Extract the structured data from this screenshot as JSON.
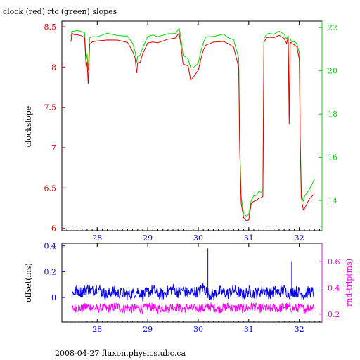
{
  "page": {
    "title": "clock (red) rtc (green) slopes",
    "footer": "2008-04-27 fluxon.physics.ubc.ca"
  },
  "colors": {
    "clock": "#dd0000",
    "rtc": "#00dd00",
    "offset": "#0000ee",
    "rndtrip": "#ff00ff",
    "frame": "#000000"
  },
  "chart_data": [
    {
      "type": "line",
      "title": "clock (red) rtc (green) slopes",
      "ylabel": "clockslope",
      "x_ticks": [
        28,
        29,
        30,
        31,
        32
      ],
      "x_range": [
        27.3,
        32.45
      ],
      "y_left_ticks": [
        "6",
        "6.5",
        "7",
        "7.5",
        "8",
        "8.5"
      ],
      "y_left_range": [
        5.97,
        8.57
      ],
      "y_right_ticks": [
        "14",
        "16",
        "18",
        "20",
        "22"
      ],
      "y_right_range": [
        12.6,
        22.3
      ],
      "series": [
        {
          "name": "clock",
          "axis": "left",
          "x": [
            27.48,
            27.5,
            27.55,
            27.6,
            27.7,
            27.75,
            27.78,
            27.8,
            27.82,
            27.85,
            27.9,
            28.0,
            28.2,
            28.4,
            28.6,
            28.7,
            28.75,
            28.78,
            28.8,
            28.85,
            28.9,
            29.0,
            29.1,
            29.2,
            29.4,
            29.55,
            29.62,
            29.65,
            29.7,
            29.8,
            29.85,
            29.9,
            29.95,
            30.0,
            30.05,
            30.1,
            30.15,
            30.3,
            30.5,
            30.6,
            30.7,
            30.8,
            30.82,
            30.85,
            30.9,
            30.95,
            31.0,
            31.05,
            31.1,
            31.15,
            31.2,
            31.25,
            31.28,
            31.3,
            31.35,
            31.4,
            31.5,
            31.6,
            31.7,
            31.75,
            31.78,
            31.8,
            31.82,
            31.85,
            31.9,
            31.95,
            32.0,
            32.02,
            32.04,
            32.06,
            32.08,
            32.1,
            32.2,
            32.3
          ],
          "values": [
            8.33,
            8.42,
            8.4,
            8.4,
            8.38,
            8.37,
            8.0,
            8.05,
            7.8,
            8.28,
            8.3,
            8.32,
            8.35,
            8.33,
            8.3,
            8.2,
            8.1,
            7.92,
            8.06,
            8.05,
            8.15,
            8.3,
            8.32,
            8.3,
            8.34,
            8.35,
            8.42,
            8.3,
            8.05,
            8.0,
            7.85,
            7.88,
            7.92,
            7.95,
            8.1,
            8.2,
            8.28,
            8.3,
            8.32,
            8.29,
            8.26,
            8.0,
            7.0,
            6.3,
            6.12,
            6.08,
            6.1,
            6.3,
            6.34,
            6.36,
            6.38,
            6.38,
            6.39,
            8.3,
            8.36,
            8.37,
            8.36,
            8.38,
            8.35,
            8.3,
            8.38,
            7.3,
            8.3,
            8.3,
            8.28,
            8.25,
            8.1,
            7.0,
            6.4,
            6.3,
            6.24,
            6.24,
            6.35,
            6.42
          ]
        },
        {
          "name": "rtc",
          "axis": "left",
          "x": [
            27.48,
            27.5,
            27.55,
            27.6,
            27.7,
            27.75,
            27.78,
            27.8,
            27.82,
            27.85,
            27.9,
            28.0,
            28.2,
            28.4,
            28.6,
            28.7,
            28.75,
            28.78,
            28.8,
            28.85,
            28.9,
            29.0,
            29.1,
            29.2,
            29.4,
            29.55,
            29.62,
            29.65,
            29.7,
            29.8,
            29.85,
            29.9,
            29.95,
            30.0,
            30.05,
            30.1,
            30.15,
            30.3,
            30.5,
            30.6,
            30.7,
            30.8,
            30.82,
            30.85,
            30.9,
            30.95,
            31.0,
            31.05,
            31.1,
            31.15,
            31.2,
            31.25,
            31.28,
            31.3,
            31.35,
            31.4,
            31.5,
            31.6,
            31.7,
            31.75,
            31.78,
            31.8,
            31.82,
            31.85,
            31.9,
            31.95,
            32.0,
            32.02,
            32.04,
            32.06,
            32.08,
            32.1,
            32.2,
            32.3
          ],
          "values": [
            8.38,
            8.45,
            8.44,
            8.44,
            8.43,
            8.42,
            8.1,
            8.15,
            7.95,
            8.35,
            8.37,
            8.38,
            8.41,
            8.4,
            8.38,
            8.3,
            8.2,
            8.05,
            8.12,
            8.14,
            8.25,
            8.38,
            8.39,
            8.38,
            8.42,
            8.42,
            8.47,
            8.38,
            8.15,
            8.1,
            7.98,
            8.0,
            8.03,
            8.05,
            8.2,
            8.3,
            8.36,
            8.38,
            8.4,
            8.37,
            8.34,
            8.1,
            7.1,
            6.4,
            6.18,
            6.14,
            6.16,
            6.36,
            6.4,
            6.42,
            6.45,
            6.45,
            6.47,
            8.36,
            8.41,
            8.42,
            8.41,
            8.43,
            8.41,
            8.36,
            8.4,
            7.4,
            8.34,
            8.33,
            8.32,
            8.3,
            8.18,
            7.1,
            6.48,
            6.38,
            6.33,
            6.38,
            6.48,
            6.6
          ]
        }
      ]
    },
    {
      "type": "line",
      "ylabel": "offset(ms)",
      "y2label": "rnd-trip(ms)",
      "x_ticks": [
        28,
        29,
        30,
        31,
        32
      ],
      "x_range": [
        27.3,
        32.45
      ],
      "y_left_ticks": [
        "0",
        "0.2",
        "0.4"
      ],
      "y_left_range": [
        -0.19,
        0.42
      ],
      "y_right_ticks": [
        "0.2",
        "0.4",
        "0.6"
      ],
      "y_right_range": [
        0.14,
        0.74
      ],
      "series": [
        {
          "name": "offset",
          "axis": "left",
          "x": [
            27.5,
            27.6,
            27.7,
            27.8,
            27.9,
            28.0,
            28.1,
            28.2,
            28.3,
            28.4,
            28.5,
            28.6,
            28.7,
            28.8,
            28.9,
            29.0,
            29.1,
            29.2,
            29.3,
            29.4,
            29.5,
            29.6,
            29.7,
            29.8,
            29.9,
            30.0,
            30.1,
            30.2,
            30.3,
            30.4,
            30.5,
            30.6,
            30.7,
            30.8,
            30.9,
            31.0,
            31.1,
            31.2,
            31.3,
            31.4,
            31.5,
            31.6,
            31.7,
            31.8,
            31.9,
            32.0,
            32.1,
            32.2,
            32.3
          ],
          "values": [
            0.03,
            0.06,
            0.04,
            0.07,
            0.05,
            0.08,
            0.04,
            0.02,
            0.05,
            0.03,
            0.04,
            0.02,
            0.03,
            0.05,
            0.02,
            0.04,
            0.06,
            0.03,
            0.02,
            0.05,
            0.07,
            0.04,
            0.06,
            0.03,
            0.05,
            0.04,
            0.08,
            0.03,
            0.02,
            0.05,
            0.04,
            0.03,
            0.06,
            0.04,
            0.02,
            0.05,
            0.03,
            0.04,
            0.06,
            0.03,
            0.05,
            0.04,
            0.06,
            0.03,
            0.05,
            0.04,
            0.02,
            0.05,
            0.03
          ],
          "peaks": [
            {
              "x": 30.19,
              "value": 0.38
            },
            {
              "x": 31.85,
              "value": 0.28
            }
          ]
        },
        {
          "name": "rnd-trip",
          "axis": "right",
          "x": [
            27.5,
            27.6,
            27.7,
            27.8,
            27.9,
            28.0,
            28.1,
            28.2,
            28.3,
            28.4,
            28.5,
            28.6,
            28.7,
            28.8,
            28.9,
            29.0,
            29.1,
            29.2,
            29.3,
            29.4,
            29.5,
            29.6,
            29.7,
            29.8,
            29.9,
            30.0,
            30.1,
            30.2,
            30.3,
            30.4,
            30.5,
            30.6,
            30.7,
            30.8,
            30.9,
            31.0,
            31.1,
            31.2,
            31.3,
            31.4,
            31.5,
            31.6,
            31.7,
            31.8,
            31.9,
            32.0,
            32.1,
            32.2,
            32.3
          ],
          "values": [
            0.24,
            0.25,
            0.24,
            0.26,
            0.25,
            0.24,
            0.25,
            0.24,
            0.25,
            0.26,
            0.24,
            0.25,
            0.24,
            0.25,
            0.24,
            0.26,
            0.25,
            0.24,
            0.25,
            0.24,
            0.26,
            0.25,
            0.24,
            0.25,
            0.24,
            0.25,
            0.24,
            0.26,
            0.25,
            0.24,
            0.25,
            0.26,
            0.24,
            0.25,
            0.24,
            0.25,
            0.26,
            0.24,
            0.25,
            0.24,
            0.25,
            0.24,
            0.26,
            0.25,
            0.24,
            0.25,
            0.24,
            0.25,
            0.26
          ]
        }
      ]
    }
  ]
}
